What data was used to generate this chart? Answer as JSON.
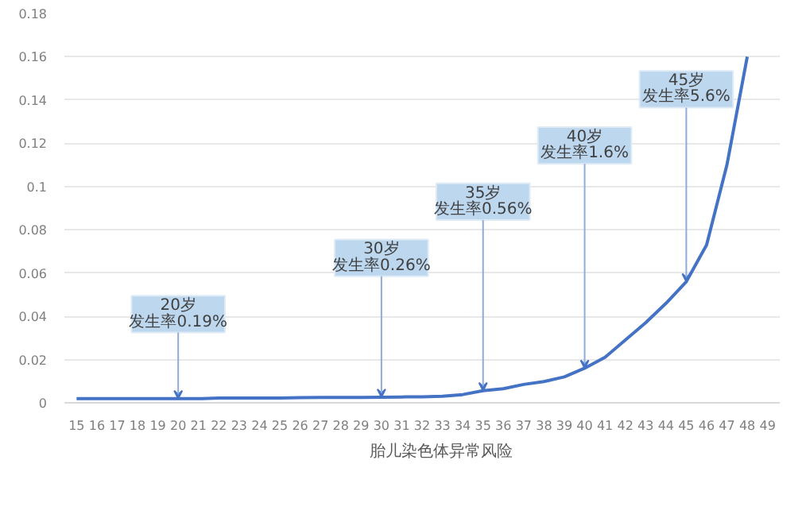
{
  "chart_data": {
    "type": "line",
    "categories": [
      "15",
      "16",
      "17",
      "18",
      "19",
      "20",
      "21",
      "22",
      "23",
      "24",
      "25",
      "26",
      "27",
      "28",
      "29",
      "30",
      "31",
      "32",
      "33",
      "34",
      "35",
      "36",
      "37",
      "38",
      "39",
      "40",
      "41",
      "42",
      "43",
      "44",
      "45",
      "46",
      "47",
      "48",
      "49"
    ],
    "series": [
      {
        "name": "胎儿染色体异常风险",
        "color": "#4472c4",
        "values": [
          0.0019,
          0.0019,
          0.0019,
          0.0019,
          0.0019,
          0.0019,
          0.0019,
          0.0022,
          0.0022,
          0.0022,
          0.0022,
          0.0024,
          0.0025,
          0.0025,
          0.0025,
          0.0026,
          0.0027,
          0.0028,
          0.003,
          0.0038,
          0.0056,
          0.0065,
          0.0085,
          0.0098,
          0.012,
          0.016,
          0.021,
          0.029,
          0.037,
          0.046,
          0.056,
          0.073,
          0.11,
          0.16,
          null
        ]
      }
    ],
    "ylim": [
      0,
      0.18
    ],
    "yticks": [
      0,
      0.02,
      0.04,
      0.06,
      0.08,
      0.1,
      0.12,
      0.14,
      0.16,
      0.18
    ],
    "grid": "y",
    "legend": "bottom",
    "marker": "none",
    "line_style": "solid",
    "annotations": [
      {
        "text": "20岁",
        "x": "20",
        "y": 0.0019
      },
      {
        "text": "发生率0.19%",
        "x": "20",
        "y": 0.0019
      },
      {
        "text": "30岁",
        "x": "30",
        "y": 0.0026
      },
      {
        "text": "发生率0.26%",
        "x": "30",
        "y": 0.0026
      },
      {
        "text": "35岁",
        "x": "35",
        "y": 0.0056
      },
      {
        "text": "发生率0.56%",
        "x": "35",
        "y": 0.0056
      },
      {
        "text": "40岁",
        "x": "40",
        "y": 0.016
      },
      {
        "text": "发生率1.6%",
        "x": "40",
        "y": 0.016
      },
      {
        "text": "45岁",
        "x": "45",
        "y": 0.056
      },
      {
        "text": "发生率5.6%",
        "x": "45",
        "y": 0.056
      }
    ]
  }
}
